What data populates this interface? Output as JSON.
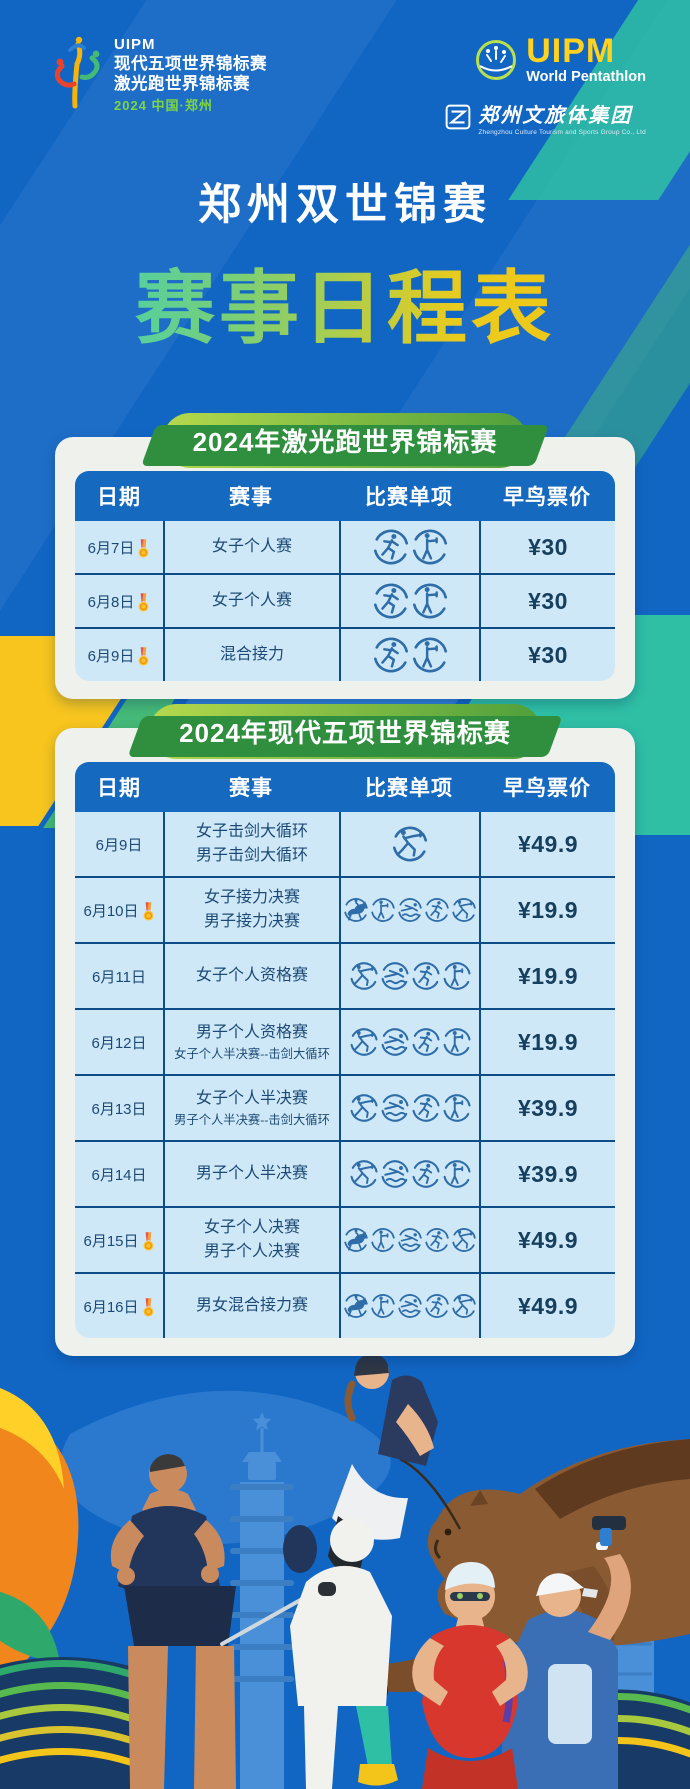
{
  "colors": {
    "bg_blue": "#1166c4",
    "bg_blue_light": "#2d7fd3",
    "stripe_teal": "#2fbfa5",
    "stripe_yellow": "#f7c51e",
    "stripe_green": "#45b977",
    "card_bg": "#eff1ec",
    "th_blue": "#1569bf",
    "row_bg": "#cfe8f8",
    "row_line": "#0e4c86",
    "text_navy": "#1c4a74",
    "price_navy": "#17405f",
    "grad_teal": "#2fd0c6",
    "grad_yellow": "#f7c411",
    "uipm_yellow": "#ffd21f",
    "logo_green": "#7ed63f",
    "pill_green_light": "#b5d94c",
    "pill_green_dark": "#4d9e3b",
    "icon_blue": "#2e6da8",
    "medal_gold": "#ffc02d",
    "orange_swoosh": "#f0861c"
  },
  "header": {
    "event_logo": {
      "org": "UIPM",
      "line1": "现代五项世界锦标赛",
      "line2": "激光跑世界锦标赛",
      "line3": "2024  中国·郑州"
    },
    "uipm_logo": {
      "name": "UIPM",
      "tagline": "World Pentathlon"
    },
    "group_logo": {
      "name": "郑州文旅体集团",
      "tagline": "Zhengzhou Culture Tourism and Sports Group Co., Ltd"
    }
  },
  "title": {
    "line1": "郑州双世锦赛",
    "line2": "赛事日程表"
  },
  "tables": [
    {
      "title": "2024年激光跑世界锦标赛",
      "columns": [
        "日期",
        "赛事",
        "比赛单项",
        "早鸟票价"
      ],
      "rows": [
        {
          "date": "6月7日",
          "medal": true,
          "events": [
            "女子个人赛"
          ],
          "sports": [
            "run",
            "shoot"
          ],
          "price": "¥30"
        },
        {
          "date": "6月8日",
          "medal": true,
          "events": [
            "女子个人赛"
          ],
          "sports": [
            "run",
            "shoot"
          ],
          "price": "¥30"
        },
        {
          "date": "6月9日",
          "medal": true,
          "events": [
            "混合接力"
          ],
          "sports": [
            "run",
            "shoot"
          ],
          "price": "¥30"
        }
      ]
    },
    {
      "title": "2024年现代五项世界锦标赛",
      "columns": [
        "日期",
        "赛事",
        "比赛单项",
        "早鸟票价"
      ],
      "rows": [
        {
          "date": "6月9日",
          "medal": false,
          "events": [
            "女子击剑大循环",
            "男子击剑大循环"
          ],
          "sports": [
            "fence"
          ],
          "price": "¥49.9"
        },
        {
          "date": "6月10日",
          "medal": true,
          "events": [
            "女子接力决赛",
            "男子接力决赛"
          ],
          "sports": [
            "ride",
            "shoot",
            "swim",
            "run",
            "fence"
          ],
          "price": "¥19.9"
        },
        {
          "date": "6月11日",
          "medal": false,
          "events": [
            "女子个人资格赛"
          ],
          "sports": [
            "fence",
            "swim",
            "run",
            "shoot"
          ],
          "price": "¥19.9"
        },
        {
          "date": "6月12日",
          "medal": false,
          "events": [
            "男子个人资格赛",
            "女子个人半决赛--击剑大循环"
          ],
          "sports": [
            "fence",
            "swim",
            "run",
            "shoot"
          ],
          "price": "¥19.9"
        },
        {
          "date": "6月13日",
          "medal": false,
          "events": [
            "女子个人半决赛",
            "男子个人半决赛--击剑大循环"
          ],
          "sports": [
            "fence",
            "swim",
            "run",
            "shoot"
          ],
          "price": "¥39.9"
        },
        {
          "date": "6月14日",
          "medal": false,
          "events": [
            "男子个人半决赛"
          ],
          "sports": [
            "fence",
            "swim",
            "run",
            "shoot"
          ],
          "price": "¥39.9"
        },
        {
          "date": "6月15日",
          "medal": true,
          "events": [
            "女子个人决赛",
            "男子个人决赛"
          ],
          "sports": [
            "ride",
            "shoot",
            "swim",
            "run",
            "fence"
          ],
          "price": "¥49.9"
        },
        {
          "date": "6月16日",
          "medal": true,
          "events": [
            "男女混合接力赛"
          ],
          "sports": [
            "ride",
            "shoot",
            "swim",
            "run",
            "fence"
          ],
          "price": "¥49.9"
        }
      ]
    }
  ],
  "icons": {
    "medal": "gold-medal-icon",
    "sports": {
      "run": "laser-run-runner-icon",
      "shoot": "laser-pistol-shooting-icon",
      "swim": "swimming-icon",
      "fence": "fencing-icon",
      "ride": "equestrian-riding-icon"
    }
  },
  "illustration": {
    "landmarks": [
      "pagoda-tower",
      "corn-tower-building",
      "stadium-arcs"
    ],
    "athletes": [
      "runner",
      "fencer",
      "swimmer",
      "pistol-shooter",
      "equestrian-rider-on-horse"
    ]
  }
}
